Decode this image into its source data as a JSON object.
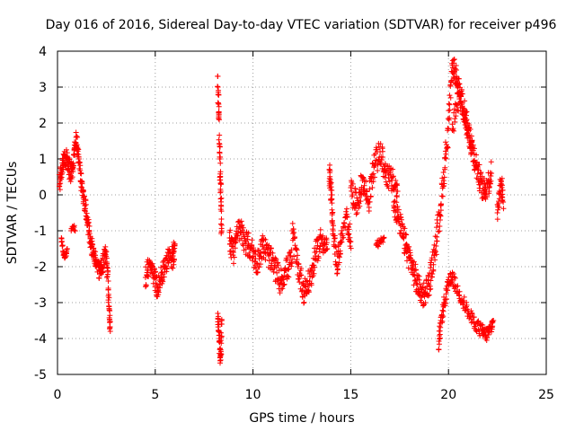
{
  "chart_data": {
    "type": "scatter",
    "title": "Day 016 of 2016, Sidereal Day-to-day VTEC variation (SDTVAR) for receiver p496",
    "xlabel": "GPS time / hours",
    "ylabel": "SDTVAR / TECUs",
    "xlim": [
      0,
      25
    ],
    "ylim": [
      -5,
      4
    ],
    "xticks": [
      0,
      5,
      10,
      15,
      20,
      25
    ],
    "yticks": [
      -5,
      -4,
      -3,
      -2,
      -1,
      0,
      1,
      2,
      3,
      4
    ],
    "grid": true,
    "marker": "plus",
    "color": "#ff0000",
    "series": [
      {
        "name": "SDTVAR",
        "segments": [
          {
            "x": [
              0.1,
              0.2,
              0.35,
              0.5,
              0.65,
              0.8,
              0.95,
              1.1,
              1.25,
              1.4,
              1.55,
              1.7,
              1.85,
              2.0,
              2.15,
              2.3,
              2.45,
              2.6
            ],
            "y": [
              0.3,
              0.7,
              1.1,
              1.0,
              0.6,
              0.8,
              1.6,
              1.0,
              0.2,
              -0.3,
              -0.8,
              -1.3,
              -1.6,
              -1.9,
              -2.1,
              -2.0,
              -1.6,
              -2.4
            ],
            "jitter": 0.25,
            "dense": 6
          },
          {
            "x": [
              0.2,
              0.3,
              0.4,
              0.5
            ],
            "y": [
              -1.2,
              -1.6,
              -1.7,
              -1.5
            ],
            "jitter": 0.1,
            "dense": 3
          },
          {
            "x": [
              0.7,
              0.8,
              0.9
            ],
            "y": [
              -1.0,
              -0.9,
              -1.0
            ],
            "jitter": 0.1,
            "dense": 2
          },
          {
            "x": [
              2.6,
              2.65,
              2.7
            ],
            "y": [
              -2.6,
              -3.2,
              -3.8
            ],
            "jitter": 0.1,
            "dense": 4
          },
          {
            "x": [
              4.5,
              4.7,
              4.9,
              5.1,
              5.3,
              5.5,
              5.7,
              5.9,
              6.0
            ],
            "y": [
              -2.3,
              -1.9,
              -2.2,
              -2.6,
              -2.3,
              -2.0,
              -1.6,
              -1.8,
              -1.4
            ],
            "jitter": 0.3,
            "dense": 6
          },
          {
            "x": [
              8.2,
              8.25,
              8.3,
              8.35,
              8.4
            ],
            "y": [
              3.3,
              2.2,
              1.0,
              0.1,
              -1.0
            ],
            "jitter": 0.3,
            "dense": 5
          },
          {
            "x": [
              8.2,
              8.25,
              8.3,
              8.35,
              8.4
            ],
            "y": [
              -3.3,
              -3.8,
              -4.3,
              -4.6,
              -3.5
            ],
            "jitter": 0.2,
            "dense": 4
          },
          {
            "x": [
              8.8,
              9.0,
              9.3,
              9.6,
              9.9,
              10.2,
              10.5,
              10.8,
              11.1,
              11.4,
              11.7,
              12.0
            ],
            "y": [
              -1.2,
              -1.6,
              -0.9,
              -1.3,
              -1.5,
              -1.9,
              -1.4,
              -1.7,
              -2.0,
              -2.4,
              -2.1,
              -1.8
            ],
            "jitter": 0.35,
            "dense": 7
          },
          {
            "x": [
              12.0,
              12.3,
              12.6,
              12.9,
              13.2,
              13.5,
              13.8
            ],
            "y": [
              -1.0,
              -2.0,
              -2.7,
              -2.4,
              -1.7,
              -1.2,
              -1.5
            ],
            "jitter": 0.35,
            "dense": 7
          },
          {
            "x": [
              13.9,
              14.0,
              14.1,
              14.3,
              14.5,
              14.8,
              15.0
            ],
            "y": [
              0.7,
              0.0,
              -1.0,
              -2.0,
              -1.3,
              -0.6,
              -1.3
            ],
            "jitter": 0.3,
            "dense": 6
          },
          {
            "x": [
              15.0,
              15.3,
              15.6,
              15.9,
              16.2,
              16.5,
              16.8,
              17.1,
              17.4
            ],
            "y": [
              0.2,
              -0.3,
              0.4,
              -0.2,
              0.8,
              1.2,
              0.6,
              0.4,
              0.1
            ],
            "jitter": 0.35,
            "dense": 7
          },
          {
            "x": [
              16.3,
              16.5,
              16.7
            ],
            "y": [
              -1.4,
              -1.3,
              -1.2
            ],
            "jitter": 0.1,
            "dense": 3
          },
          {
            "x": [
              17.2,
              17.5,
              17.8,
              18.1,
              18.4,
              18.7,
              19.0,
              19.3,
              19.6,
              19.9,
              20.2
            ],
            "y": [
              -0.2,
              -0.8,
              -1.4,
              -1.9,
              -2.5,
              -2.8,
              -2.5,
              -1.6,
              -0.3,
              1.3,
              3.4
            ],
            "jitter": 0.35,
            "dense": 8
          },
          {
            "x": [
              19.5,
              19.6,
              19.8,
              20.0,
              20.2,
              20.5,
              20.8,
              21.1,
              21.4,
              21.7,
              21.9,
              22.1,
              22.3
            ],
            "y": [
              -4.3,
              -3.5,
              -3.0,
              -2.5,
              -2.3,
              -2.7,
              -3.0,
              -3.4,
              -3.6,
              -3.8,
              -3.9,
              -3.8,
              -3.5
            ],
            "jitter": 0.2,
            "dense": 5
          },
          {
            "x": [
              20.2,
              20.4,
              20.6,
              20.8,
              21.0,
              21.2,
              21.4,
              21.6,
              21.8,
              22.0,
              22.2
            ],
            "y": [
              3.6,
              3.3,
              2.8,
              2.4,
              1.8,
              1.3,
              0.9,
              0.4,
              0.1,
              0.3,
              0.6
            ],
            "jitter": 0.35,
            "dense": 6
          },
          {
            "x": [
              20.2,
              20.4,
              20.6,
              20.9,
              21.2
            ],
            "y": [
              1.8,
              2.5,
              2.8,
              2.0,
              1.5
            ],
            "jitter": 0.3,
            "dense": 4
          },
          {
            "x": [
              22.5,
              22.6,
              22.7,
              22.8
            ],
            "y": [
              -0.5,
              0.1,
              0.3,
              -0.2
            ],
            "jitter": 0.3,
            "dense": 4
          }
        ]
      }
    ]
  }
}
